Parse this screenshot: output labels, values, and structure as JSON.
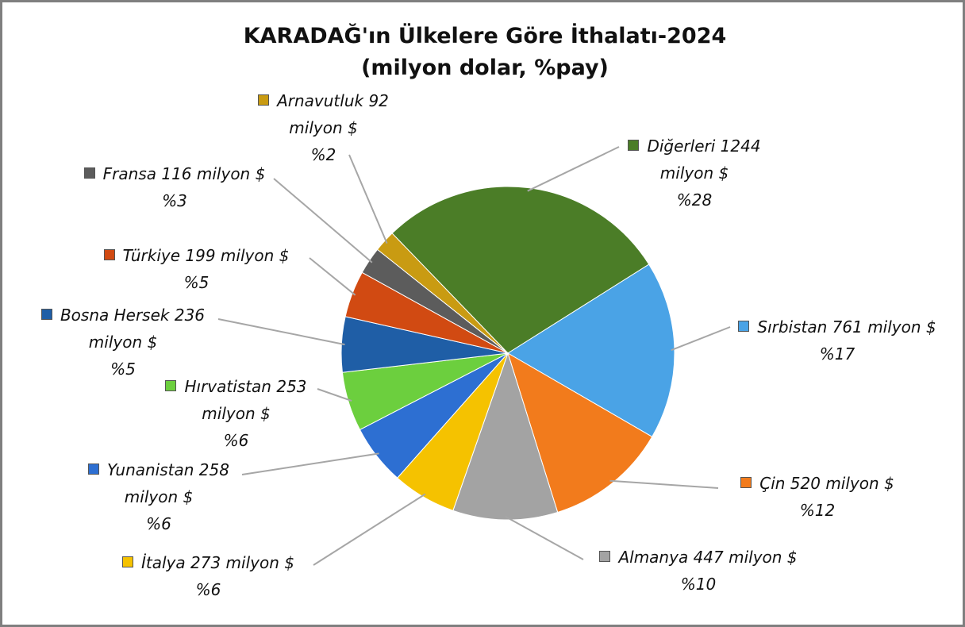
{
  "chart_data": {
    "type": "pie",
    "title": "KARADAĞ'ın Ülkelere Göre İthalatı-2024",
    "subtitle": "(milyon dolar, %pay)",
    "categories": [
      "Diğerleri",
      "Sırbistan",
      "Çin",
      "Almanya",
      "İtalya",
      "Yunanistan",
      "Hırvatistan",
      "Bosna Hersek",
      "Türkiye",
      "Fransa",
      "Arnavutluk"
    ],
    "values": [
      1244,
      761,
      520,
      447,
      273,
      258,
      253,
      236,
      199,
      116,
      92
    ],
    "value_labels": [
      "1244 milyon $",
      "761 milyon $",
      "520 milyon $",
      "447 milyon $",
      "273 milyon $",
      "258 milyon $",
      "253 milyon $",
      "236 milyon $",
      "199 milyon $",
      "116 milyon $",
      "92 milyon $"
    ],
    "share_labels": [
      "%28",
      "%17",
      "%12",
      "%10",
      "%6",
      "%6",
      "%6",
      "%5",
      "%5",
      "%3",
      "%2"
    ],
    "colors": [
      "#4b7d27",
      "#4aa3e6",
      "#f27b1c",
      "#a3a3a3",
      "#f5c200",
      "#2d6fd2",
      "#6ccf3e",
      "#1f5ea6",
      "#d14a12",
      "#5c5c5c",
      "#c99b12"
    ]
  }
}
